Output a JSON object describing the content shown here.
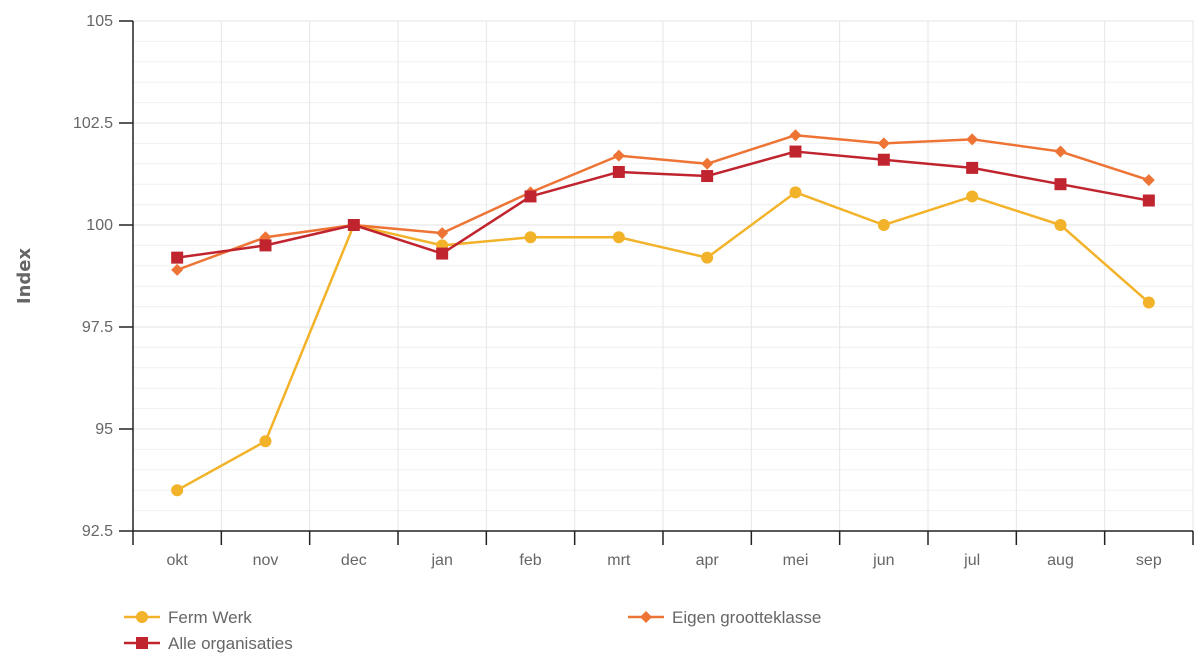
{
  "chart_data": {
    "type": "line",
    "title": "",
    "xlabel": "",
    "ylabel": "Index",
    "categories": [
      "okt",
      "nov",
      "dec",
      "jan",
      "feb",
      "mrt",
      "apr",
      "mei",
      "jun",
      "jul",
      "aug",
      "sep"
    ],
    "ylim": [
      92.5,
      105
    ],
    "yticks": [
      "92.5",
      "95",
      "97.5",
      "100",
      "102.5",
      "105"
    ],
    "grid": true,
    "legend_position": "bottom",
    "series": [
      {
        "name": "Ferm Werk",
        "color": "#F2B32A",
        "marker": "circle",
        "values": [
          93.5,
          94.7,
          100.0,
          99.5,
          99.7,
          99.7,
          99.2,
          100.8,
          100.0,
          100.7,
          100.0,
          98.1
        ]
      },
      {
        "name": "Alle organisaties",
        "color": "#C0242E",
        "marker": "square",
        "values": [
          99.2,
          99.5,
          100.0,
          99.3,
          100.7,
          101.3,
          101.2,
          101.8,
          101.6,
          101.4,
          101.0,
          100.6
        ]
      },
      {
        "name": "Eigen grootteklasse",
        "color": "#EE7436",
        "marker": "diamond",
        "values": [
          98.9,
          99.7,
          100.0,
          99.8,
          100.8,
          101.7,
          101.5,
          102.2,
          102.0,
          102.1,
          101.8,
          101.1
        ]
      }
    ]
  }
}
